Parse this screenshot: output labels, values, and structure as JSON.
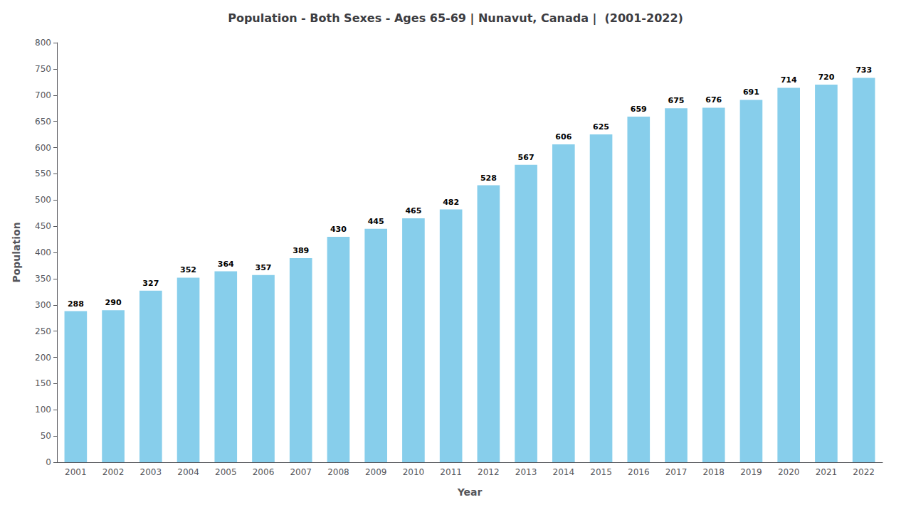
{
  "chart_data": {
    "type": "bar",
    "title": "Population - Both Sexes - Ages 65-69 | Nunavut, Canada |  (2001-2022)",
    "x_label": "Year",
    "y_label": "Population",
    "categories": [
      "2001",
      "2002",
      "2003",
      "2004",
      "2005",
      "2006",
      "2007",
      "2008",
      "2009",
      "2010",
      "2011",
      "2012",
      "2013",
      "2014",
      "2015",
      "2016",
      "2017",
      "2018",
      "2019",
      "2020",
      "2021",
      "2022"
    ],
    "values": [
      288,
      290,
      327,
      352,
      364,
      357,
      389,
      430,
      445,
      465,
      482,
      528,
      567,
      606,
      625,
      659,
      675,
      676,
      691,
      714,
      720,
      733
    ],
    "color": "#87CEEB",
    "ylim": [
      0,
      800
    ],
    "yticks": [
      0,
      50,
      100,
      150,
      200,
      250,
      300,
      350,
      400,
      450,
      500,
      550,
      600,
      650,
      700,
      750,
      800
    ],
    "grid": false,
    "data_labels": true
  }
}
